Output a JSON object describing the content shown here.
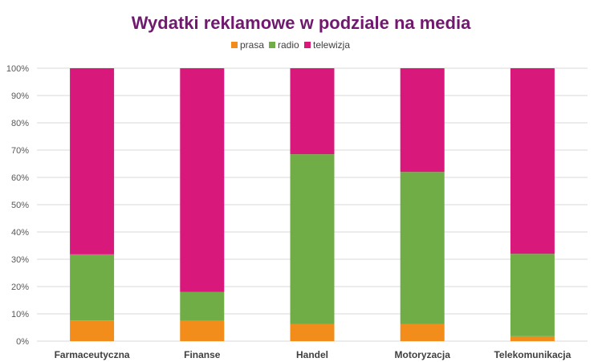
{
  "chart_data": {
    "type": "bar",
    "stacked": "percent",
    "title": "Wydatki reklamowe w podziale na media",
    "xlabel": "",
    "ylabel": "",
    "ylim": [
      0,
      100
    ],
    "yticks": [
      "0%",
      "10%",
      "20%",
      "30%",
      "40%",
      "50%",
      "60%",
      "70%",
      "80%",
      "90%",
      "100%"
    ],
    "grid": true,
    "legend_position": "top",
    "categories": [
      "Farmaceutyczna",
      "Finanse",
      "Handel",
      "Motoryzacja",
      "Telekomunikacja"
    ],
    "series": [
      {
        "name": "prasa",
        "color": "#f28c1a",
        "values": [
          7.6,
          7.4,
          6.2,
          6.2,
          1.8
        ]
      },
      {
        "name": "radio",
        "color": "#70ad47",
        "values": [
          24.2,
          10.6,
          62.3,
          55.8,
          30.2
        ]
      },
      {
        "name": "telewizja",
        "color": "#d9187c",
        "values": [
          68.2,
          82.0,
          31.5,
          38.0,
          68.0
        ]
      }
    ]
  }
}
